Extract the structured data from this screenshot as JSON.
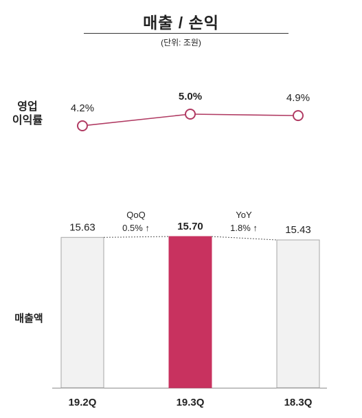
{
  "title": "매출 / 손익",
  "unit": "(단위: 조원)",
  "labels": {
    "margin_line1": "영업",
    "margin_line2": "이익률",
    "revenue": "매출액"
  },
  "colors": {
    "highlight_bar": "#C8325F",
    "other_bar": "#F2F2F2",
    "bar_border": "#A6A6A6",
    "line": "#B03A62"
  },
  "chart_data": [
    {
      "type": "line",
      "categories": [
        "19.2Q",
        "19.3Q",
        "18.3Q"
      ],
      "series": [
        {
          "name": "영업 이익률",
          "values": [
            4.2,
            5.0,
            4.9
          ]
        }
      ],
      "data_labels": [
        "4.2%",
        "5.0%",
        "4.9%"
      ],
      "highlight_index": 1,
      "ylim": [
        4.0,
        5.1
      ]
    },
    {
      "type": "bar",
      "categories": [
        "19.2Q",
        "19.3Q",
        "18.3Q"
      ],
      "series": [
        {
          "name": "매출액",
          "values": [
            15.63,
            15.7,
            15.43
          ]
        }
      ],
      "data_labels": [
        "15.63",
        "15.70",
        "15.43"
      ],
      "highlight_index": 1,
      "annotations": [
        {
          "label": "QoQ",
          "value": "0.5% ↑"
        },
        {
          "label": "YoY",
          "value": "1.8% ↑"
        }
      ]
    }
  ]
}
